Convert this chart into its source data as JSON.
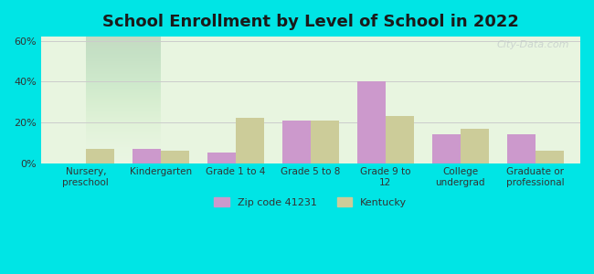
{
  "title": "School Enrollment by Level of School in 2022",
  "categories": [
    "Nursery,\npreschool",
    "Kindergarten",
    "Grade 1 to 4",
    "Grade 5 to 8",
    "Grade 9 to\n12",
    "College\nundergrad",
    "Graduate or\nprofessional"
  ],
  "zip_values": [
    0.0,
    7.0,
    5.0,
    21.0,
    40.0,
    14.0,
    14.0
  ],
  "ky_values": [
    7.0,
    6.0,
    22.0,
    21.0,
    23.0,
    17.0,
    6.0
  ],
  "zip_color": "#cc99cc",
  "ky_color": "#cccc99",
  "zip_label": "Zip code 41231",
  "ky_label": "Kentucky",
  "ylim": [
    0,
    62
  ],
  "yticks": [
    0,
    20,
    40,
    60
  ],
  "ytick_labels": [
    "0%",
    "20%",
    "40%",
    "60%"
  ],
  "background_color": "#00e5e5",
  "plot_bg_top": "#f0fff0",
  "plot_bg_bottom": "#ffffff",
  "title_color": "#1a1a1a",
  "title_fontsize": 13,
  "bar_width": 0.38,
  "watermark_text": "City-Data.com",
  "watermark_color": "#c0c8c8"
}
